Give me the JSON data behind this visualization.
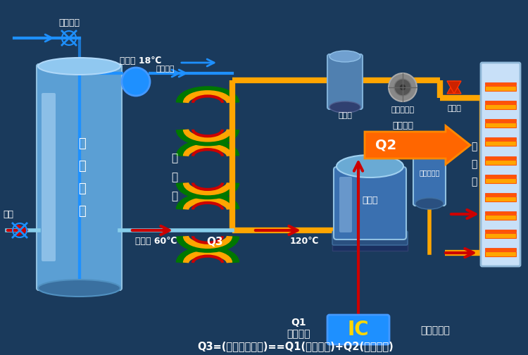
{
  "bg_color": "#1a3a5c",
  "title_bottom": "Q3=(热水获得能量)==Q1(电器能量)+Q2(空气热能)",
  "tank_label": "保\n温\n水\n箱",
  "condenser_label": "冷\n凝\n器",
  "compressor_label": "压缩机",
  "vapor_sep_label": "汽液分离器",
  "evaporator_label": "蒸\n发\n器",
  "storage_label": "储液罐",
  "filter_label": "干燥过滤器",
  "expansion_label": "膨胀阀",
  "pump_label": "循环水泵",
  "hot_water_out_label": "热水出口",
  "hot_water_label": "热水",
  "ic_label": "IC",
  "q1_label": "Q1\n电能输入",
  "temp_ctrl_label": "温度调节器",
  "q2_label": "Q2",
  "air_heat_label": "空气热能",
  "hot_water_temp": "热水出 60℃",
  "cold_water_temp": "冷水入 18℃",
  "temp_120": "120℃",
  "q3_label": "Q3"
}
